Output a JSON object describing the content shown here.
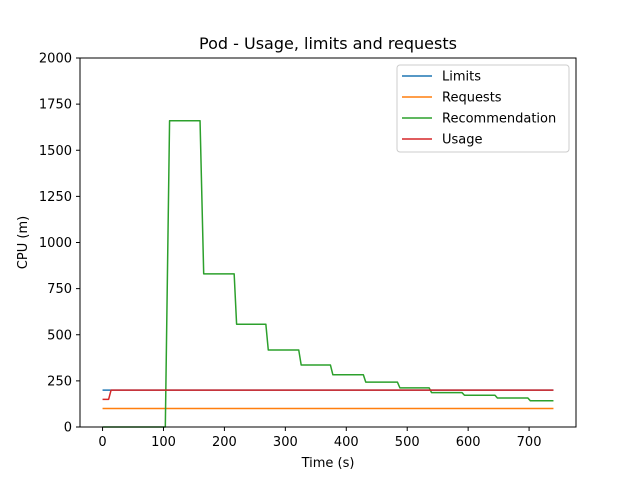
{
  "chart_data": {
    "type": "line",
    "title": "Pod - Usage, limits and requests",
    "xlabel": "Time (s)",
    "ylabel": "CPU (m)",
    "xlim": [
      -37,
      777
    ],
    "ylim": [
      0,
      2000
    ],
    "xticks": [
      0,
      100,
      200,
      300,
      400,
      500,
      600,
      700
    ],
    "yticks": [
      0,
      250,
      500,
      750,
      1000,
      1250,
      1500,
      1750,
      2000
    ],
    "grid": false,
    "legend_position": "top-right",
    "series": [
      {
        "name": "Limits",
        "color": "#1f77b4",
        "points": [
          [
            0,
            200
          ],
          [
            740,
            200
          ]
        ]
      },
      {
        "name": "Requests",
        "color": "#ff7f0e",
        "points": [
          [
            0,
            100
          ],
          [
            740,
            100
          ]
        ]
      },
      {
        "name": "Recommendation",
        "color": "#2ca02c",
        "points": [
          [
            0,
            0
          ],
          [
            103,
            0
          ],
          [
            110,
            1660
          ],
          [
            160,
            1660
          ],
          [
            166,
            830
          ],
          [
            216,
            830
          ],
          [
            220,
            557
          ],
          [
            268,
            557
          ],
          [
            272,
            417
          ],
          [
            322,
            417
          ],
          [
            326,
            336
          ],
          [
            374,
            336
          ],
          [
            378,
            283
          ],
          [
            428,
            283
          ],
          [
            432,
            243
          ],
          [
            484,
            243
          ],
          [
            488,
            212
          ],
          [
            536,
            212
          ],
          [
            540,
            186
          ],
          [
            590,
            186
          ],
          [
            594,
            172
          ],
          [
            644,
            172
          ],
          [
            648,
            157
          ],
          [
            698,
            157
          ],
          [
            702,
            142
          ],
          [
            740,
            142
          ]
        ]
      },
      {
        "name": "Usage",
        "color": "#d62728",
        "points": [
          [
            0,
            150
          ],
          [
            10,
            150
          ],
          [
            14,
            200
          ],
          [
            740,
            200
          ]
        ]
      }
    ]
  }
}
